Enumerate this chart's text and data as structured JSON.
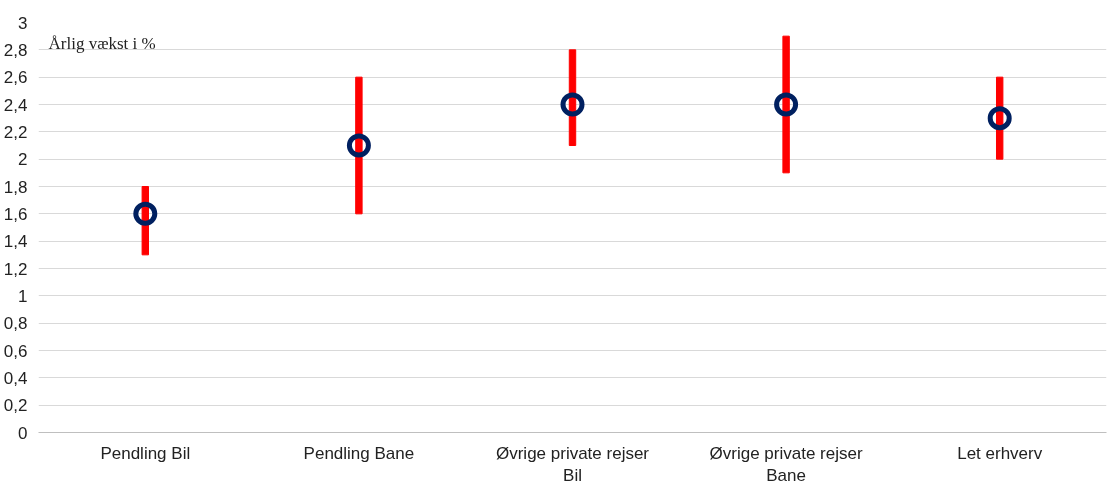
{
  "chart_data": {
    "type": "scatter",
    "categories": [
      "Pendling Bil",
      "Pendling Bane",
      "Øvrige private rejser Bil",
      "Øvrige private rejser Bane",
      "Let erhverv"
    ],
    "series": [
      {
        "type": "bar",
        "color": "#ff0000",
        "base": [
          1.3,
          1.6,
          2.1,
          1.9,
          2.0
        ],
        "values": [
          0.5,
          1.0,
          0.7,
          1.0,
          0.6
        ]
      },
      {
        "color": "#002060",
        "values": [
          1.6,
          2.1,
          2.4,
          2.4,
          2.3
        ],
        "marker": "circle"
      }
    ],
    "ylim": [
      0,
      3
    ],
    "yticks": [
      0,
      {
        "value": 0.2,
        "label": "0,2"
      },
      {
        "value": 0.4,
        "label": "0,4"
      },
      {
        "value": 0.6,
        "label": "0,6"
      },
      {
        "value": 0.8,
        "label": "0,8"
      },
      1,
      {
        "value": 1.2,
        "label": "1,2"
      },
      {
        "value": 1.4,
        "label": "1,4"
      },
      {
        "value": 1.6,
        "label": "1,6"
      },
      {
        "value": 1.8,
        "label": "1,8"
      },
      2,
      {
        "value": 2.2,
        "label": "2,2"
      },
      {
        "value": 2.4,
        "label": "2,4"
      },
      {
        "value": 2.6,
        "label": "2,6"
      },
      {
        "value": 2.8,
        "label": "2,8"
      },
      3
    ],
    "grid": "y",
    "annotations": [
      "Årlig vækst i %"
    ]
  }
}
